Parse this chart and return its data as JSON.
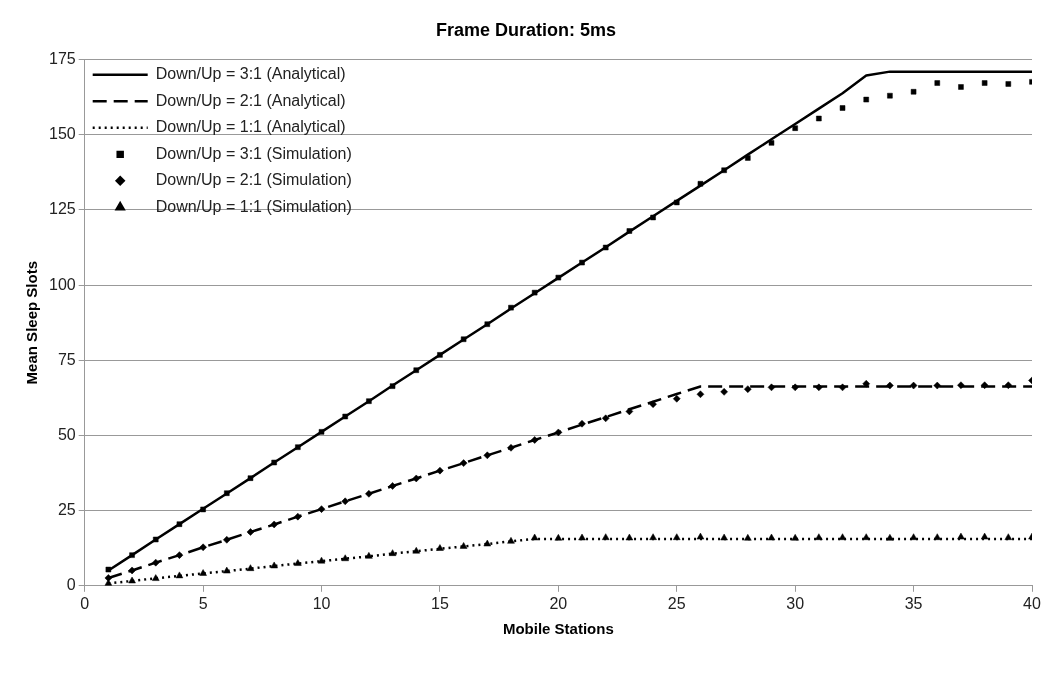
{
  "chart_data": {
    "type": "line",
    "title": "Frame Duration: 5ms",
    "xlabel": "Mobile Stations",
    "ylabel": "Mean Sleep Slots",
    "x": [
      1,
      2,
      3,
      4,
      5,
      6,
      7,
      8,
      9,
      10,
      11,
      12,
      13,
      14,
      15,
      16,
      17,
      18,
      19,
      20,
      21,
      22,
      23,
      24,
      25,
      26,
      27,
      28,
      29,
      30,
      31,
      32,
      33,
      34,
      35,
      36,
      37,
      38,
      39,
      40
    ],
    "xlim": [
      0,
      40
    ],
    "xticks": [
      0,
      5,
      10,
      15,
      20,
      25,
      30,
      35,
      40
    ],
    "ylim": [
      0,
      175
    ],
    "yticks": [
      0,
      25,
      50,
      75,
      100,
      125,
      150,
      175
    ],
    "grid": "y",
    "legend": "top left",
    "series": [
      {
        "name": "Down/Up = 3:1 (Analytical)",
        "type": "line",
        "color": "#000000",
        "line_style": "solid",
        "marker": "none",
        "values": [
          5.1,
          10.2,
          15.4,
          20.5,
          25.6,
          30.7,
          35.8,
          41,
          46.1,
          51.2,
          56.3,
          61.4,
          66.6,
          71.7,
          76.8,
          81.9,
          87,
          92.2,
          97.3,
          102.4,
          107.5,
          112.6,
          117.8,
          122.9,
          128,
          133.1,
          138.2,
          143.4,
          148.5,
          153.6,
          158.7,
          163.8,
          169.7,
          171,
          171,
          171,
          171,
          171,
          171,
          171
        ]
      },
      {
        "name": "Down/Up = 2:1 (Analytical)",
        "type": "line",
        "color": "#000000",
        "line_style": "dashed",
        "marker": "none",
        "values": [
          2.6,
          5.1,
          7.7,
          10.2,
          12.8,
          15.3,
          17.9,
          20.4,
          23,
          25.5,
          28.1,
          30.6,
          33.2,
          35.7,
          38.3,
          40.8,
          43.4,
          45.9,
          48.5,
          51,
          53.6,
          56.1,
          58.7,
          61.2,
          63.8,
          66.3,
          66.3,
          66.3,
          66.3,
          66.3,
          66.3,
          66.3,
          66.3,
          66.3,
          66.3,
          66.3,
          66.3,
          66.3,
          66.3,
          66.3
        ]
      },
      {
        "name": "Down/Up = 1:1 (Analytical)",
        "type": "line",
        "color": "#000000",
        "line_style": "dotted",
        "marker": "none",
        "values": [
          0.8,
          1.6,
          2.5,
          3.3,
          4.1,
          4.9,
          5.7,
          6.6,
          7.4,
          8.2,
          9,
          9.8,
          10.7,
          11.5,
          12.3,
          13.1,
          13.9,
          14.8,
          15.6,
          15.6,
          15.6,
          15.6,
          15.6,
          15.6,
          15.6,
          15.6,
          15.6,
          15.6,
          15.6,
          15.6,
          15.6,
          15.6,
          15.6,
          15.6,
          15.6,
          15.6,
          15.6,
          15.6,
          15.6,
          15.6
        ]
      },
      {
        "name": "Down/Up = 3:1 (Simulation)",
        "type": "scatter",
        "color": "#000000",
        "marker": "square",
        "values": [
          5.4,
          10.2,
          15.4,
          20.5,
          25.4,
          30.8,
          35.8,
          41,
          46.1,
          51.2,
          56.3,
          61.4,
          66.4,
          71.7,
          76.8,
          82,
          87,
          92.5,
          97.5,
          102.5,
          107.5,
          112.5,
          118,
          122.5,
          127.5,
          133.7,
          138.2,
          142.3,
          147.3,
          152.2,
          155.4,
          158.9,
          161.7,
          163,
          164.3,
          167.2,
          165.9,
          167.2,
          166.9,
          167.6
        ]
      },
      {
        "name": "Down/Up = 2:1 (Simulation)",
        "type": "scatter",
        "color": "#000000",
        "marker": "diamond",
        "values": [
          2.6,
          5.1,
          7.7,
          10.2,
          12.8,
          15.3,
          17.9,
          20.4,
          23,
          25.5,
          28.1,
          30.6,
          33.2,
          35.7,
          38.3,
          40.8,
          43.4,
          45.9,
          48.5,
          51,
          53.9,
          55.7,
          58,
          60.4,
          62.2,
          63.7,
          64.5,
          65.4,
          66,
          66,
          66,
          66,
          67.2,
          66.6,
          66.6,
          66.6,
          66.7,
          66.7,
          66.7,
          68.3
        ]
      },
      {
        "name": "Down/Up = 1:1 (Simulation)",
        "type": "scatter",
        "color": "#000000",
        "marker": "triangle",
        "values": [
          0.8,
          1.6,
          2.4,
          3.3,
          4.1,
          4.9,
          5.7,
          6.6,
          7.4,
          8.2,
          9,
          9.8,
          10.7,
          11.5,
          12.4,
          13.1,
          13.9,
          14.8,
          15.9,
          15.8,
          15.9,
          16,
          15.9,
          16,
          16,
          16.2,
          15.9,
          15.8,
          15.9,
          15.8,
          16,
          16,
          16,
          15.8,
          16,
          16,
          16.2,
          16.2,
          16,
          16.2
        ]
      }
    ]
  }
}
